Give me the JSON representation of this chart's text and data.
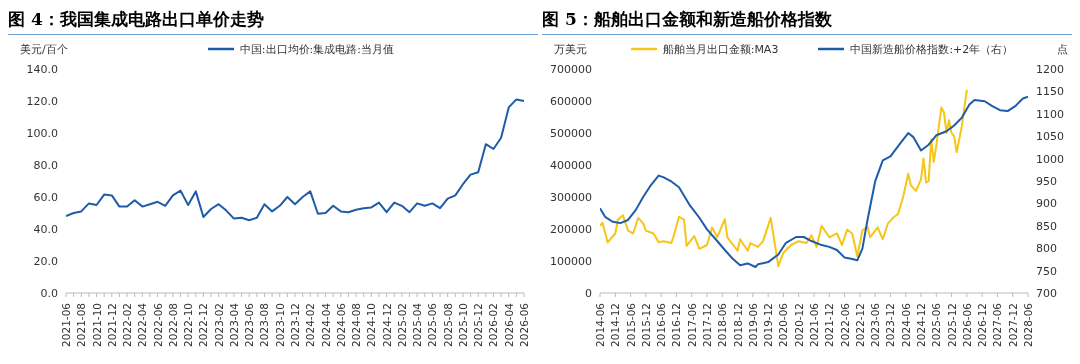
{
  "chart_data": [
    {
      "type": "line",
      "title": "图 4：我国集成电路出口单价走势",
      "ylabel": "美元/百个",
      "categories": [
        "2021-06",
        null,
        "2021-08",
        null,
        "2021-10",
        null,
        "2021-12",
        null,
        "2022-02",
        null,
        "2022-04",
        null,
        "2022-06",
        null,
        "2022-08",
        null,
        "2022-10",
        null,
        "2022-12",
        null,
        "2023-02",
        null,
        "2023-04",
        null,
        "2023-06",
        null,
        "2023-08",
        null,
        "2023-10",
        null,
        "2023-12",
        null,
        "2024-02",
        null,
        "2024-04",
        null,
        "2024-06",
        null,
        "2024-08",
        null,
        "2024-10",
        null,
        "2024-12",
        null,
        "2025-02",
        null,
        "2025-04",
        null,
        "2025-06",
        null,
        "2025-08",
        null,
        "2025-10",
        null,
        "2025-12",
        null,
        "2026-02",
        null,
        "2026-04",
        null,
        "2026-06"
      ],
      "series": [
        {
          "name": "中国:出口均价:集成电路:当月值",
          "color": "#1f5ca8",
          "values": [
            48,
            50,
            51,
            56,
            55,
            61.5,
            61,
            54,
            54,
            58,
            54,
            55.5,
            57,
            54.5,
            61,
            64,
            55,
            63.5,
            47.5,
            52.5,
            55.5,
            51.5,
            46.5,
            47,
            45.5,
            47,
            55.5,
            51,
            54.5,
            60,
            55.5,
            60,
            63.5,
            49.5,
            50,
            54.5,
            51,
            50.5,
            52,
            53,
            53.5,
            56.5,
            50.5,
            56.5,
            54.5,
            50.5,
            56,
            54.5,
            56,
            53,
            59,
            61,
            68,
            74,
            75.5,
            93,
            90,
            97,
            116,
            121,
            120
          ]
        }
      ],
      "ylim": [
        0,
        140
      ],
      "yticks": [
        {
          "value": 0,
          "label": "0.0"
        },
        {
          "value": 20,
          "label": "20.0"
        },
        {
          "value": 40,
          "label": "40.0"
        },
        {
          "value": 60,
          "label": "60.0"
        },
        {
          "value": 80,
          "label": "80.0"
        },
        {
          "value": 100,
          "label": "100.0"
        },
        {
          "value": 120,
          "label": "120.0"
        },
        {
          "value": 140,
          "label": "140.0"
        }
      ],
      "legend": "top"
    },
    {
      "type": "line",
      "title": "图 5：船舶出口金额和新造船价格指数",
      "ylabel": "万美元",
      "y2label": "点",
      "series": [
        {
          "name": "船舶当月出口金额:MA3",
          "color": "#f5c518",
          "x": [
            "2014-06",
            "2014-07",
            "2014-09",
            "2014-12",
            "2015-01",
            "2015-03",
            "2015-05",
            "2015-07",
            "2015-09",
            "2015-11",
            "2015-12",
            "2016-03",
            "2016-05",
            "2016-07",
            "2016-10",
            "2016-11",
            "2017-01",
            "2017-03",
            "2017-04",
            "2017-07",
            "2017-09",
            "2017-12",
            "2018-02",
            "2018-04",
            "2018-07",
            "2018-08",
            "2018-12",
            "2019-01",
            "2019-04",
            "2019-05",
            "2019-08",
            "2019-10",
            "2020-01",
            "2020-04",
            "2020-06",
            "2020-09",
            "2020-12",
            "2021-03",
            "2021-05",
            "2021-07",
            "2021-09",
            "2021-12",
            "2022-03",
            "2022-05",
            "2022-07",
            "2022-09",
            "2022-11",
            "2023-01",
            "2023-03",
            "2023-04",
            "2023-07",
            "2023-09",
            "2023-11",
            "2024-01",
            "2024-03",
            "2024-05",
            "2024-07",
            "2024-08",
            "2024-10",
            "2024-12",
            "2025-01",
            "2025-02",
            "2025-03",
            "2025-04",
            "2025-05",
            "2025-06",
            "2025-08",
            "2025-09",
            "2025-10",
            "2025-11",
            "2025-12",
            "2026-01",
            "2026-02",
            "2026-04",
            "2026-06"
          ],
          "values": [
            210000,
            219000,
            158000,
            186000,
            229000,
            243000,
            195000,
            186000,
            235000,
            217000,
            195000,
            186000,
            159000,
            162000,
            156000,
            180000,
            238000,
            229000,
            147000,
            178000,
            138000,
            150000,
            205000,
            174000,
            231000,
            174000,
            132000,
            168000,
            132000,
            156000,
            144000,
            162000,
            235000,
            84000,
            126000,
            150000,
            162000,
            156000,
            180000,
            144000,
            210000,
            174000,
            186000,
            150000,
            198000,
            186000,
            114000,
            196000,
            207000,
            174000,
            205000,
            168000,
            217000,
            235000,
            247000,
            301000,
            373000,
            337000,
            319000,
            355000,
            420000,
            345000,
            350000,
            480000,
            410000,
            460000,
            580000,
            565000,
            500000,
            540000,
            500000,
            490000,
            440000,
            520000,
            635000
          ]
        },
        {
          "name": "中国新造船价格指数:+2年（右）",
          "color": "#1f5ca8",
          "axis": "y2",
          "x": [
            "2014-06",
            "2014-08",
            "2014-11",
            "2015-02",
            "2015-05",
            "2015-08",
            "2015-11",
            "2016-02",
            "2016-05",
            "2016-07",
            "2016-10",
            "2017-01",
            "2017-05",
            "2017-09",
            "2017-12",
            "2018-04",
            "2018-07",
            "2018-10",
            "2019-01",
            "2019-04",
            "2019-07",
            "2019-08",
            "2019-12",
            "2020-04",
            "2020-07",
            "2020-11",
            "2021-02",
            "2021-05",
            "2021-09",
            "2021-12",
            "2022-03",
            "2022-06",
            "2022-09",
            "2022-11",
            "2023-01",
            "2023-03",
            "2023-06",
            "2023-09",
            "2023-12",
            "2024-04",
            "2024-07",
            "2024-09",
            "2024-12",
            "2025-03",
            "2025-06",
            "2025-10",
            "2026-01",
            "2026-04",
            "2026-07",
            "2026-09",
            "2027-01",
            "2027-04",
            "2027-07",
            "2027-10",
            "2028-01",
            "2028-04",
            "2028-06"
          ],
          "values": [
            889,
            870,
            859,
            856,
            863,
            885,
            915,
            941,
            962,
            958,
            949,
            936,
            898,
            868,
            842,
            816,
            796,
            777,
            762,
            766,
            758,
            764,
            769,
            786,
            812,
            825,
            825,
            816,
            807,
            803,
            796,
            779,
            776,
            773,
            799,
            863,
            949,
            996,
            1005,
            1035,
            1057,
            1048,
            1018,
            1031,
            1052,
            1061,
            1074,
            1091,
            1121,
            1131,
            1128,
            1117,
            1108,
            1106,
            1117,
            1134,
            1138
          ]
        }
      ],
      "xlim": [
        "2014-06",
        "2028-06"
      ],
      "xticks": [
        "2014-06",
        "2014-12",
        "2015-06",
        "2015-12",
        "2016-06",
        "2016-12",
        "2017-06",
        "2017-12",
        "2018-06",
        "2018-12",
        "2019-06",
        "2019-12",
        "2020-06",
        "2020-12",
        "2021-06",
        "2021-12",
        "2022-06",
        "2022-12",
        "2023-06",
        "2023-12",
        "2024-06",
        "2024-12",
        "2025-06",
        "2025-12",
        "2026-06",
        "2026-12",
        "2027-06",
        "2027-12",
        "2028-06"
      ],
      "ylim": [
        0,
        700000
      ],
      "yticks": [
        0,
        100000,
        200000,
        300000,
        400000,
        500000,
        600000,
        700000
      ],
      "y2lim": [
        700,
        1200
      ],
      "y2ticks": [
        700,
        750,
        800,
        850,
        900,
        950,
        1000,
        1050,
        1100,
        1150,
        1200
      ],
      "legend": "top"
    }
  ]
}
